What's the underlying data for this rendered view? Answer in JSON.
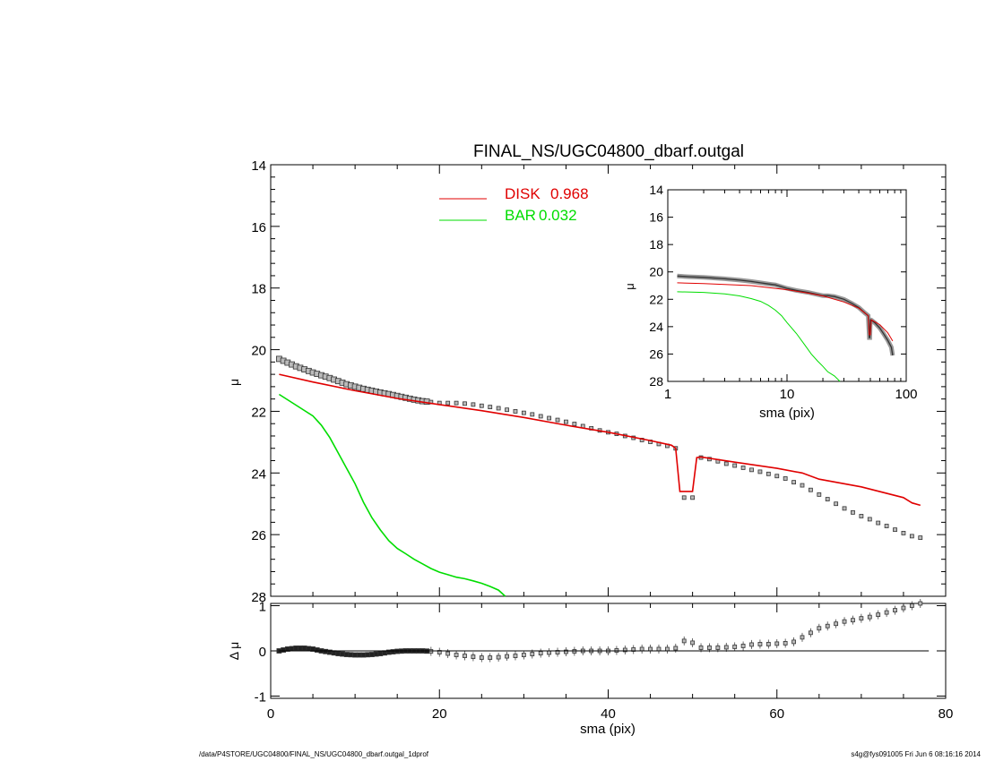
{
  "chart_data": [
    {
      "type": "scatter",
      "title": "FINAL_NS/UGC04800_dbarf.outgal",
      "xlabel": "",
      "ylabel": "μ",
      "xlim": [
        0,
        80
      ],
      "ylim": [
        28,
        14
      ],
      "y_inverted": true,
      "yticks": [
        "14",
        "16",
        "18",
        "20",
        "22",
        "24",
        "26",
        "28"
      ],
      "legend_position": "top",
      "legend": [
        {
          "label": "DISK",
          "value": "0.968",
          "color": "#e00000"
        },
        {
          "label": "BAR",
          "value": "0.032",
          "color": "#00dd00"
        }
      ],
      "series": [
        {
          "name": "data",
          "marker": "square",
          "color": "#555555",
          "x": [
            1,
            2,
            3,
            4,
            5,
            6,
            7,
            8,
            9,
            10,
            11,
            12,
            13,
            14,
            15,
            16,
            17,
            18,
            19,
            20,
            21,
            22,
            23,
            24,
            25,
            26,
            27,
            28,
            29,
            30,
            31,
            32,
            33,
            34,
            35,
            36,
            37,
            38,
            39,
            40,
            41,
            42,
            43,
            44,
            45,
            46,
            47,
            48,
            49,
            50,
            51,
            52,
            53,
            54,
            55,
            56,
            57,
            58,
            59,
            60,
            61,
            62,
            63,
            64,
            65,
            66,
            67,
            68,
            69,
            70,
            71,
            72,
            73,
            74,
            75,
            76,
            77
          ],
          "y": [
            20.3,
            20.42,
            20.54,
            20.64,
            20.74,
            20.83,
            20.92,
            21.02,
            21.12,
            21.2,
            21.27,
            21.33,
            21.39,
            21.44,
            21.5,
            21.56,
            21.62,
            21.67,
            21.7,
            21.73,
            21.73,
            21.73,
            21.75,
            21.78,
            21.82,
            21.86,
            21.9,
            21.95,
            22.0,
            22.05,
            22.1,
            22.16,
            22.22,
            22.28,
            22.34,
            22.41,
            22.48,
            22.55,
            22.62,
            22.68,
            22.73,
            22.8,
            22.86,
            22.93,
            22.99,
            23.06,
            23.12,
            23.2,
            24.8,
            24.8,
            23.5,
            23.55,
            23.62,
            23.7,
            23.76,
            23.83,
            23.9,
            23.96,
            24.03,
            24.1,
            24.18,
            24.3,
            24.4,
            24.55,
            24.7,
            24.85,
            25.0,
            25.15,
            25.28,
            25.4,
            25.5,
            25.62,
            25.72,
            25.84,
            25.95,
            26.05,
            26.1
          ]
        },
        {
          "name": "DISK",
          "style": "line",
          "color": "#e00000",
          "x": [
            1,
            5,
            10,
            15,
            20,
            25,
            30,
            35,
            40,
            45,
            47.5,
            48,
            48.5,
            50,
            50.5,
            51,
            55,
            60,
            63,
            65,
            70,
            75,
            76,
            77
          ],
          "y": [
            20.8,
            21.05,
            21.33,
            21.58,
            21.78,
            21.98,
            22.2,
            22.45,
            22.68,
            22.95,
            23.1,
            23.2,
            24.6,
            24.6,
            23.5,
            23.48,
            23.65,
            23.85,
            24.0,
            24.2,
            24.45,
            24.8,
            24.97,
            25.05
          ]
        },
        {
          "name": "BAR",
          "style": "line",
          "color": "#00dd00",
          "x": [
            1,
            3,
            5,
            6,
            7,
            8,
            9,
            10,
            11,
            12,
            13,
            14,
            15,
            16,
            17,
            18,
            19,
            20,
            21,
            22,
            23,
            24,
            25,
            26,
            27,
            27.8
          ],
          "y": [
            21.45,
            21.8,
            22.15,
            22.45,
            22.85,
            23.35,
            23.85,
            24.35,
            24.95,
            25.45,
            25.85,
            26.2,
            26.45,
            26.62,
            26.8,
            26.95,
            27.1,
            27.22,
            27.3,
            27.38,
            27.43,
            27.5,
            27.58,
            27.68,
            27.8,
            28.0
          ]
        }
      ]
    },
    {
      "type": "line",
      "inset": true,
      "xlabel": "sma (pix)",
      "ylabel": "μ",
      "xscale": "log",
      "xlim": [
        1,
        100
      ],
      "ylim": [
        28,
        14
      ],
      "y_inverted": true,
      "xticks": [
        "1",
        "10",
        "100"
      ],
      "yticks": [
        "14",
        "16",
        "18",
        "20",
        "22",
        "24",
        "26",
        "28"
      ],
      "series": [
        {
          "name": "data",
          "style": "thick-line",
          "color": "#333333",
          "x": [
            1.2,
            1.5,
            2,
            3,
            4,
            5,
            6,
            7,
            8,
            10,
            12,
            15,
            18,
            20,
            22,
            25,
            30,
            35,
            40,
            45,
            48,
            49,
            49.5,
            50,
            51,
            55,
            60,
            65,
            70,
            75,
            77
          ],
          "y": [
            20.3,
            20.35,
            20.4,
            20.5,
            20.6,
            20.7,
            20.8,
            20.88,
            20.95,
            21.2,
            21.35,
            21.5,
            21.65,
            21.73,
            21.73,
            21.8,
            22.0,
            22.3,
            22.6,
            23.0,
            23.2,
            24.8,
            24.8,
            23.5,
            23.52,
            23.75,
            24.1,
            24.55,
            25.0,
            25.5,
            26.1
          ]
        },
        {
          "name": "DISK",
          "style": "line",
          "color": "#e00000",
          "x": [
            1.2,
            2,
            5,
            10,
            15,
            20,
            30,
            40,
            48,
            49,
            50,
            51,
            60,
            70,
            77
          ],
          "y": [
            20.8,
            20.85,
            21.0,
            21.3,
            21.55,
            21.75,
            22.2,
            22.65,
            23.2,
            24.6,
            24.6,
            23.5,
            23.85,
            24.45,
            25.05
          ]
        },
        {
          "name": "BAR",
          "style": "line",
          "color": "#00dd00",
          "x": [
            1.2,
            2,
            3,
            4,
            5,
            6,
            7,
            8,
            9,
            10,
            12,
            14,
            16,
            18,
            20,
            22,
            25,
            27.8
          ],
          "y": [
            21.45,
            21.5,
            21.6,
            21.75,
            21.95,
            22.15,
            22.45,
            22.8,
            23.2,
            23.7,
            24.5,
            25.3,
            26.0,
            26.5,
            26.9,
            27.3,
            27.6,
            28.0
          ]
        }
      ]
    },
    {
      "type": "scatter",
      "xlabel": "sma (pix)",
      "ylabel": "Δ μ",
      "xlim": [
        0,
        80
      ],
      "ylim": [
        -1.05,
        1.05
      ],
      "xticks": [
        "0",
        "20",
        "40",
        "60",
        "80"
      ],
      "yticks": [
        "1",
        "0",
        "-1"
      ],
      "series": [
        {
          "name": "residual",
          "marker": "square-errorbar",
          "color": "#555555",
          "x": [
            1,
            2,
            3,
            4,
            5,
            6,
            7,
            8,
            9,
            10,
            11,
            12,
            13,
            14,
            15,
            16,
            17,
            18,
            19,
            20,
            21,
            22,
            23,
            24,
            25,
            26,
            27,
            28,
            29,
            30,
            31,
            32,
            33,
            34,
            35,
            36,
            37,
            38,
            39,
            40,
            41,
            42,
            43,
            44,
            45,
            46,
            47,
            48,
            49,
            50,
            51,
            52,
            53,
            54,
            55,
            56,
            57,
            58,
            59,
            60,
            61,
            62,
            63,
            64,
            65,
            66,
            67,
            68,
            69,
            70,
            71,
            72,
            73,
            74,
            75,
            76,
            77
          ],
          "y": [
            0.0,
            0.04,
            0.06,
            0.06,
            0.04,
            0.0,
            -0.03,
            -0.06,
            -0.08,
            -0.09,
            -0.09,
            -0.08,
            -0.06,
            -0.03,
            -0.01,
            0.0,
            0.0,
            0.0,
            -0.01,
            -0.03,
            -0.06,
            -0.09,
            -0.11,
            -0.13,
            -0.15,
            -0.15,
            -0.14,
            -0.12,
            -0.11,
            -0.09,
            -0.07,
            -0.05,
            -0.04,
            -0.03,
            -0.02,
            -0.01,
            0.0,
            0.0,
            0.0,
            0.0,
            0.01,
            0.02,
            0.03,
            0.04,
            0.04,
            0.04,
            0.04,
            0.06,
            0.22,
            0.18,
            0.07,
            0.07,
            0.07,
            0.08,
            0.09,
            0.11,
            0.14,
            0.15,
            0.15,
            0.16,
            0.17,
            0.2,
            0.3,
            0.4,
            0.5,
            0.55,
            0.6,
            0.65,
            0.68,
            0.72,
            0.75,
            0.8,
            0.85,
            0.9,
            0.95,
            1.0,
            1.05
          ]
        },
        {
          "name": "zero",
          "style": "line",
          "color": "#000000",
          "x": [
            1,
            78
          ],
          "y": [
            0,
            0
          ]
        }
      ]
    }
  ],
  "footer": {
    "left": "/data/P4STORE/UGC04800/FINAL_NS/UGC04800_dbarf.outgal_1dprof",
    "right": "s4g@fys091005  Fri Jun  6 08:16:16 2014"
  }
}
